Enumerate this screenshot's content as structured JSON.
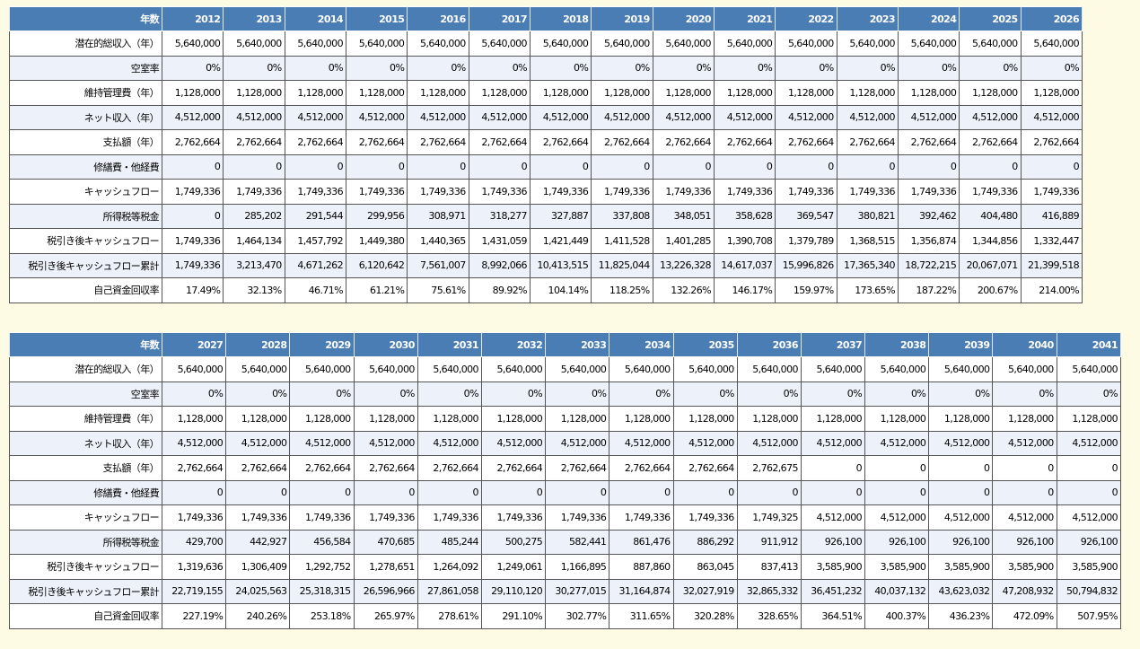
{
  "tables": [
    {
      "header": [
        "年数",
        "2012",
        "2013",
        "2014",
        "2015",
        "2016",
        "2017",
        "2018",
        "2019",
        "2020",
        "2021",
        "2022",
        "2023",
        "2024",
        "2025",
        "2026"
      ],
      "rows": [
        [
          "潜在的総収入（年）",
          "5,640,000",
          "5,640,000",
          "5,640,000",
          "5,640,000",
          "5,640,000",
          "5,640,000",
          "5,640,000",
          "5,640,000",
          "5,640,000",
          "5,640,000",
          "5,640,000",
          "5,640,000",
          "5,640,000",
          "5,640,000",
          "5,640,000"
        ],
        [
          "空室率",
          "0%",
          "0%",
          "0%",
          "0%",
          "0%",
          "0%",
          "0%",
          "0%",
          "0%",
          "0%",
          "0%",
          "0%",
          "0%",
          "0%",
          "0%"
        ],
        [
          "維持管理費（年）",
          "1,128,000",
          "1,128,000",
          "1,128,000",
          "1,128,000",
          "1,128,000",
          "1,128,000",
          "1,128,000",
          "1,128,000",
          "1,128,000",
          "1,128,000",
          "1,128,000",
          "1,128,000",
          "1,128,000",
          "1,128,000",
          "1,128,000"
        ],
        [
          "ネット収入（年）",
          "4,512,000",
          "4,512,000",
          "4,512,000",
          "4,512,000",
          "4,512,000",
          "4,512,000",
          "4,512,000",
          "4,512,000",
          "4,512,000",
          "4,512,000",
          "4,512,000",
          "4,512,000",
          "4,512,000",
          "4,512,000",
          "4,512,000"
        ],
        [
          "支払額（年）",
          "2,762,664",
          "2,762,664",
          "2,762,664",
          "2,762,664",
          "2,762,664",
          "2,762,664",
          "2,762,664",
          "2,762,664",
          "2,762,664",
          "2,762,664",
          "2,762,664",
          "2,762,664",
          "2,762,664",
          "2,762,664",
          "2,762,664"
        ],
        [
          "修繕費・他経費",
          "0",
          "0",
          "0",
          "0",
          "0",
          "0",
          "0",
          "0",
          "0",
          "0",
          "0",
          "0",
          "0",
          "0",
          "0"
        ],
        [
          "キャッシュフロー",
          "1,749,336",
          "1,749,336",
          "1,749,336",
          "1,749,336",
          "1,749,336",
          "1,749,336",
          "1,749,336",
          "1,749,336",
          "1,749,336",
          "1,749,336",
          "1,749,336",
          "1,749,336",
          "1,749,336",
          "1,749,336",
          "1,749,336"
        ],
        [
          "所得税等税金",
          "0",
          "285,202",
          "291,544",
          "299,956",
          "308,971",
          "318,277",
          "327,887",
          "337,808",
          "348,051",
          "358,628",
          "369,547",
          "380,821",
          "392,462",
          "404,480",
          "416,889"
        ],
        [
          "税引き後キャッシュフロー",
          "1,749,336",
          "1,464,134",
          "1,457,792",
          "1,449,380",
          "1,440,365",
          "1,431,059",
          "1,421,449",
          "1,411,528",
          "1,401,285",
          "1,390,708",
          "1,379,789",
          "1,368,515",
          "1,356,874",
          "1,344,856",
          "1,332,447"
        ],
        [
          "税引き後キャッシュフロー累計",
          "1,749,336",
          "3,213,470",
          "4,671,262",
          "6,120,642",
          "7,561,007",
          "8,992,066",
          "10,413,515",
          "11,825,044",
          "13,226,328",
          "14,617,037",
          "15,996,826",
          "17,365,340",
          "18,722,215",
          "20,067,071",
          "21,399,518"
        ],
        [
          "自己資金回収率",
          "17.49%",
          "32.13%",
          "46.71%",
          "61.21%",
          "75.61%",
          "89.92%",
          "104.14%",
          "118.25%",
          "132.26%",
          "146.17%",
          "159.97%",
          "173.65%",
          "187.22%",
          "200.67%",
          "214.00%"
        ]
      ]
    },
    {
      "header": [
        "年数",
        "2027",
        "2028",
        "2029",
        "2030",
        "2031",
        "2032",
        "2033",
        "2034",
        "2035",
        "2036",
        "2037",
        "2038",
        "2039",
        "2040",
        "2041"
      ],
      "rows": [
        [
          "潜在的総収入（年）",
          "5,640,000",
          "5,640,000",
          "5,640,000",
          "5,640,000",
          "5,640,000",
          "5,640,000",
          "5,640,000",
          "5,640,000",
          "5,640,000",
          "5,640,000",
          "5,640,000",
          "5,640,000",
          "5,640,000",
          "5,640,000",
          "5,640,000"
        ],
        [
          "空室率",
          "0%",
          "0%",
          "0%",
          "0%",
          "0%",
          "0%",
          "0%",
          "0%",
          "0%",
          "0%",
          "0%",
          "0%",
          "0%",
          "0%",
          "0%"
        ],
        [
          "維持管理費（年）",
          "1,128,000",
          "1,128,000",
          "1,128,000",
          "1,128,000",
          "1,128,000",
          "1,128,000",
          "1,128,000",
          "1,128,000",
          "1,128,000",
          "1,128,000",
          "1,128,000",
          "1,128,000",
          "1,128,000",
          "1,128,000",
          "1,128,000"
        ],
        [
          "ネット収入（年）",
          "4,512,000",
          "4,512,000",
          "4,512,000",
          "4,512,000",
          "4,512,000",
          "4,512,000",
          "4,512,000",
          "4,512,000",
          "4,512,000",
          "4,512,000",
          "4,512,000",
          "4,512,000",
          "4,512,000",
          "4,512,000",
          "4,512,000"
        ],
        [
          "支払額（年）",
          "2,762,664",
          "2,762,664",
          "2,762,664",
          "2,762,664",
          "2,762,664",
          "2,762,664",
          "2,762,664",
          "2,762,664",
          "2,762,664",
          "2,762,675",
          "0",
          "0",
          "0",
          "0",
          "0"
        ],
        [
          "修繕費・他経費",
          "0",
          "0",
          "0",
          "0",
          "0",
          "0",
          "0",
          "0",
          "0",
          "0",
          "0",
          "0",
          "0",
          "0",
          "0"
        ],
        [
          "キャッシュフロー",
          "1,749,336",
          "1,749,336",
          "1,749,336",
          "1,749,336",
          "1,749,336",
          "1,749,336",
          "1,749,336",
          "1,749,336",
          "1,749,336",
          "1,749,325",
          "4,512,000",
          "4,512,000",
          "4,512,000",
          "4,512,000",
          "4,512,000"
        ],
        [
          "所得税等税金",
          "429,700",
          "442,927",
          "456,584",
          "470,685",
          "485,244",
          "500,275",
          "582,441",
          "861,476",
          "886,292",
          "911,912",
          "926,100",
          "926,100",
          "926,100",
          "926,100",
          "926,100"
        ],
        [
          "税引き後キャッシュフロー",
          "1,319,636",
          "1,306,409",
          "1,292,752",
          "1,278,651",
          "1,264,092",
          "1,249,061",
          "1,166,895",
          "887,860",
          "863,045",
          "837,413",
          "3,585,900",
          "3,585,900",
          "3,585,900",
          "3,585,900",
          "3,585,900"
        ],
        [
          "税引き後キャッシュフロー累計",
          "22,719,155",
          "24,025,563",
          "25,318,315",
          "26,596,966",
          "27,861,058",
          "29,110,120",
          "30,277,015",
          "31,164,874",
          "32,027,919",
          "32,865,332",
          "36,451,232",
          "40,037,132",
          "43,623,032",
          "47,208,932",
          "50,794,832"
        ],
        [
          "自己資金回収率",
          "227.19%",
          "240.26%",
          "253.18%",
          "265.97%",
          "278.61%",
          "291.10%",
          "302.77%",
          "311.65%",
          "320.28%",
          "328.65%",
          "364.51%",
          "400.37%",
          "436.23%",
          "472.09%",
          "507.95%"
        ]
      ]
    }
  ]
}
